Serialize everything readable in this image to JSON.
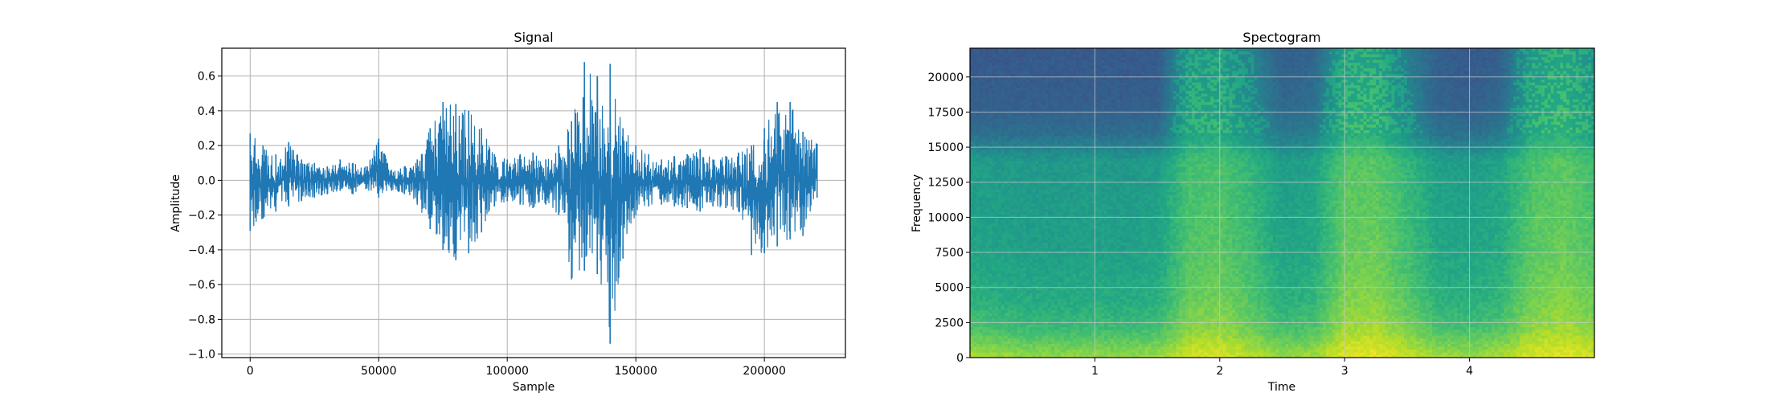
{
  "chart_data": [
    {
      "type": "line",
      "title": "Signal",
      "xlabel": "Sample",
      "ylabel": "Amplitude",
      "xlim": [
        -11025,
        231525
      ],
      "ylim": [
        -1.02,
        0.76
      ],
      "x_ticks": [
        0,
        50000,
        100000,
        150000,
        200000
      ],
      "x_tick_labels": [
        "0",
        "50000",
        "100000",
        "150000",
        "200000"
      ],
      "y_ticks": [
        -1.0,
        -0.8,
        -0.6,
        -0.4,
        -0.2,
        0.0,
        0.2,
        0.4,
        0.6
      ],
      "y_tick_labels": [
        "−1.0",
        "−0.8",
        "−0.6",
        "−0.4",
        "−0.2",
        "0.0",
        "0.2",
        "0.4",
        "0.6"
      ],
      "grid": true,
      "color": "#1f77b4",
      "series": [
        {
          "x": [
            0,
            5000,
            10000,
            15000,
            20000,
            25000,
            30000,
            35000,
            40000,
            45000,
            50000,
            55000,
            60000,
            65000,
            70000,
            75000,
            80000,
            85000,
            90000,
            95000,
            100000,
            105000,
            110000,
            115000,
            120000,
            125000,
            130000,
            135000,
            140000,
            145000,
            150000,
            155000,
            160000,
            165000,
            170000,
            175000,
            180000,
            185000,
            190000,
            195000,
            200000,
            205000,
            210000,
            215000,
            220500
          ],
          "max": [
            0.27,
            0.2,
            0.15,
            0.22,
            0.12,
            0.1,
            0.08,
            0.12,
            0.1,
            0.08,
            0.24,
            0.06,
            0.08,
            0.12,
            0.3,
            0.45,
            0.44,
            0.4,
            0.3,
            0.15,
            0.12,
            0.15,
            0.16,
            0.12,
            0.2,
            0.34,
            0.68,
            0.6,
            0.67,
            0.3,
            0.2,
            0.15,
            0.12,
            0.14,
            0.15,
            0.18,
            0.12,
            0.14,
            0.16,
            0.2,
            0.3,
            0.45,
            0.45,
            0.28,
            0.21
          ],
          "min": [
            -0.29,
            -0.22,
            -0.18,
            -0.15,
            -0.12,
            -0.1,
            -0.08,
            -0.06,
            -0.08,
            -0.05,
            -0.1,
            -0.06,
            -0.08,
            -0.14,
            -0.28,
            -0.4,
            -0.46,
            -0.42,
            -0.3,
            -0.15,
            -0.12,
            -0.14,
            -0.16,
            -0.14,
            -0.2,
            -0.57,
            -0.52,
            -0.54,
            -0.94,
            -0.45,
            -0.2,
            -0.15,
            -0.14,
            -0.15,
            -0.16,
            -0.18,
            -0.15,
            -0.16,
            -0.18,
            -0.43,
            -0.42,
            -0.38,
            -0.34,
            -0.32,
            -0.1
          ]
        }
      ]
    },
    {
      "type": "heatmap",
      "title": "Spectogram",
      "xlabel": "Time",
      "ylabel": "Frequency",
      "xlim": [
        0,
        5
      ],
      "ylim": [
        0,
        22050
      ],
      "x_ticks": [
        1,
        2,
        3,
        4
      ],
      "x_tick_labels": [
        "1",
        "2",
        "3",
        "4"
      ],
      "y_ticks": [
        0,
        2500,
        5000,
        7500,
        10000,
        12500,
        15000,
        17500,
        20000
      ],
      "y_tick_labels": [
        "0",
        "2500",
        "5000",
        "7500",
        "10000",
        "12500",
        "15000",
        "17500",
        "20000"
      ],
      "grid": true,
      "colormap": "viridis",
      "cutoff_frequency": 16000,
      "time": [
        0.0,
        0.25,
        0.5,
        0.75,
        1.0,
        1.25,
        1.5,
        1.75,
        2.0,
        2.25,
        2.5,
        2.75,
        3.0,
        3.25,
        3.5,
        3.75,
        4.0,
        4.25,
        4.5,
        4.75,
        5.0
      ],
      "frequency": [
        0,
        2000,
        4000,
        6000,
        8000,
        10000,
        12000,
        14000,
        16000,
        18000,
        20000,
        22000
      ],
      "z": [
        [
          0.88,
          0.86,
          0.84,
          0.84,
          0.85,
          0.84,
          0.86,
          0.94,
          0.95,
          0.9,
          0.85,
          0.86,
          0.96,
          0.97,
          0.92,
          0.87,
          0.86,
          0.88,
          0.95,
          0.97,
          0.93
        ],
        [
          0.72,
          0.7,
          0.68,
          0.68,
          0.69,
          0.68,
          0.7,
          0.82,
          0.84,
          0.78,
          0.7,
          0.72,
          0.86,
          0.87,
          0.8,
          0.72,
          0.7,
          0.73,
          0.84,
          0.87,
          0.82
        ],
        [
          0.64,
          0.62,
          0.61,
          0.61,
          0.62,
          0.61,
          0.63,
          0.77,
          0.79,
          0.73,
          0.63,
          0.65,
          0.81,
          0.82,
          0.74,
          0.64,
          0.63,
          0.66,
          0.79,
          0.82,
          0.77
        ],
        [
          0.6,
          0.59,
          0.58,
          0.58,
          0.59,
          0.58,
          0.6,
          0.74,
          0.76,
          0.7,
          0.6,
          0.62,
          0.78,
          0.79,
          0.71,
          0.61,
          0.6,
          0.63,
          0.76,
          0.79,
          0.74
        ],
        [
          0.58,
          0.57,
          0.56,
          0.56,
          0.57,
          0.56,
          0.58,
          0.72,
          0.74,
          0.68,
          0.58,
          0.6,
          0.76,
          0.77,
          0.69,
          0.59,
          0.58,
          0.61,
          0.74,
          0.77,
          0.72
        ],
        [
          0.57,
          0.56,
          0.55,
          0.55,
          0.56,
          0.55,
          0.57,
          0.71,
          0.73,
          0.67,
          0.57,
          0.59,
          0.75,
          0.76,
          0.68,
          0.58,
          0.57,
          0.6,
          0.73,
          0.76,
          0.71
        ],
        [
          0.56,
          0.55,
          0.54,
          0.54,
          0.55,
          0.54,
          0.56,
          0.7,
          0.72,
          0.66,
          0.56,
          0.58,
          0.74,
          0.75,
          0.67,
          0.57,
          0.56,
          0.59,
          0.72,
          0.75,
          0.7
        ],
        [
          0.55,
          0.54,
          0.53,
          0.53,
          0.54,
          0.53,
          0.55,
          0.69,
          0.71,
          0.65,
          0.55,
          0.57,
          0.73,
          0.74,
          0.66,
          0.56,
          0.55,
          0.58,
          0.71,
          0.74,
          0.69
        ],
        [
          0.36,
          0.36,
          0.36,
          0.36,
          0.36,
          0.36,
          0.36,
          0.58,
          0.6,
          0.52,
          0.4,
          0.42,
          0.62,
          0.63,
          0.5,
          0.38,
          0.36,
          0.4,
          0.6,
          0.64,
          0.56
        ],
        [
          0.3,
          0.3,
          0.3,
          0.3,
          0.3,
          0.3,
          0.3,
          0.56,
          0.58,
          0.48,
          0.34,
          0.36,
          0.6,
          0.61,
          0.46,
          0.32,
          0.3,
          0.34,
          0.58,
          0.62,
          0.54
        ],
        [
          0.29,
          0.29,
          0.29,
          0.29,
          0.29,
          0.29,
          0.29,
          0.54,
          0.56,
          0.46,
          0.32,
          0.34,
          0.58,
          0.59,
          0.44,
          0.31,
          0.29,
          0.32,
          0.56,
          0.6,
          0.52
        ],
        [
          0.28,
          0.28,
          0.28,
          0.28,
          0.28,
          0.28,
          0.28,
          0.52,
          0.54,
          0.44,
          0.3,
          0.32,
          0.56,
          0.57,
          0.42,
          0.3,
          0.28,
          0.3,
          0.54,
          0.58,
          0.5
        ]
      ]
    }
  ]
}
